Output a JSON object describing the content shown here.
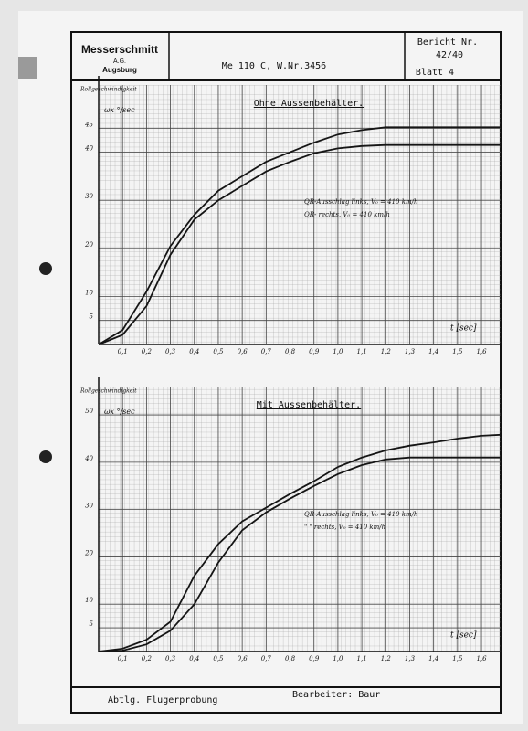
{
  "header": {
    "company": "Messerschmitt",
    "company_sub": "A.G.",
    "city": "Augsburg",
    "aircraft": "Me 110 C, W.Nr.3456",
    "report_label": "Bericht Nr.",
    "report_number": "42/40",
    "sheet": "Blatt 4"
  },
  "footer": {
    "department": "Abtlg. Flugerprobung",
    "author": "Bearbeiter: Baur"
  },
  "chart_data": [
    {
      "type": "line",
      "title": "Ohne Aussenbehälter.",
      "y_label": "Rollgeschwindigkeit",
      "y_unit": "ωx °/sec",
      "x_label": "t [sec]",
      "x": [
        0,
        0.1,
        0.2,
        0.3,
        0.4,
        0.5,
        0.6,
        0.7,
        0.8,
        0.9,
        1.0,
        1.1,
        1.2,
        1.3,
        1.4,
        1.5,
        1.6,
        1.68
      ],
      "xlim": [
        0,
        1.68
      ],
      "xticks": [
        {
          "value": 0.1,
          "label": "0,1"
        },
        {
          "value": 0.2,
          "label": "0,2"
        },
        {
          "value": 0.3,
          "label": "0,3"
        },
        {
          "value": 0.4,
          "label": "0,4"
        },
        {
          "value": 0.5,
          "label": "0,5"
        },
        {
          "value": 0.6,
          "label": "0,6"
        },
        {
          "value": 0.7,
          "label": "0,7"
        },
        {
          "value": 0.8,
          "label": "0,8"
        },
        {
          "value": 0.9,
          "label": "0,9"
        },
        {
          "value": 1.0,
          "label": "1,0"
        },
        {
          "value": 1.1,
          "label": "1,1"
        },
        {
          "value": 1.2,
          "label": "1,2"
        },
        {
          "value": 1.3,
          "label": "1,3"
        },
        {
          "value": 1.4,
          "label": "1,4"
        },
        {
          "value": 1.5,
          "label": "1,5"
        },
        {
          "value": 1.6,
          "label": "1,6"
        }
      ],
      "ylim": [
        0,
        54
      ],
      "yticks": [
        5,
        10,
        20,
        30,
        40,
        45
      ],
      "series": [
        {
          "name": "QR-Ausschlag links, V₀ = 410 km/h",
          "color": "#151515",
          "values": [
            0,
            3,
            11,
            20.5,
            27,
            32,
            35,
            38,
            40,
            42,
            43.7,
            44.6,
            45.2,
            45.2,
            45.2,
            45.2,
            45.2,
            45.2
          ]
        },
        {
          "name": "QR- rechts, V₀ = 410 km/h",
          "color": "#151515",
          "values": [
            0,
            2,
            8,
            18.7,
            26,
            30,
            33,
            36,
            38,
            39.8,
            40.8,
            41.3,
            41.5,
            41.5,
            41.5,
            41.5,
            41.5,
            41.5
          ]
        }
      ]
    },
    {
      "type": "line",
      "title": "Mit Aussenbehälter.",
      "y_label": "Rollgeschwindigkeit",
      "y_unit": "ωx °/sec",
      "x_label": "t [sec]",
      "x": [
        0,
        0.1,
        0.2,
        0.3,
        0.4,
        0.5,
        0.6,
        0.7,
        0.8,
        0.9,
        1.0,
        1.1,
        1.2,
        1.3,
        1.4,
        1.5,
        1.6,
        1.68
      ],
      "xlim": [
        0,
        1.68
      ],
      "xticks": [
        {
          "value": 0.1,
          "label": "0,1"
        },
        {
          "value": 0.2,
          "label": "0,2"
        },
        {
          "value": 0.3,
          "label": "0,3"
        },
        {
          "value": 0.4,
          "label": "0,4"
        },
        {
          "value": 0.5,
          "label": "0,5"
        },
        {
          "value": 0.6,
          "label": "0,6"
        },
        {
          "value": 0.7,
          "label": "0,7"
        },
        {
          "value": 0.8,
          "label": "0,8"
        },
        {
          "value": 0.9,
          "label": "0,9"
        },
        {
          "value": 1.0,
          "label": "1,0"
        },
        {
          "value": 1.1,
          "label": "1,1"
        },
        {
          "value": 1.2,
          "label": "1,2"
        },
        {
          "value": 1.3,
          "label": "1,3"
        },
        {
          "value": 1.4,
          "label": "1,4"
        },
        {
          "value": 1.5,
          "label": "1,5"
        },
        {
          "value": 1.6,
          "label": "1,6"
        }
      ],
      "ylim": [
        0,
        56
      ],
      "yticks": [
        5,
        10,
        20,
        30,
        40,
        50
      ],
      "series": [
        {
          "name": "QR-Ausschlag links, V₀ = 410 km/h",
          "color": "#151515",
          "values": [
            0,
            0.6,
            2.5,
            6.3,
            16,
            22.7,
            27.5,
            30.4,
            33.3,
            36,
            39,
            41,
            42.5,
            43.5,
            44.2,
            45,
            45.6,
            45.8
          ]
        },
        {
          "name": "\" \" rechts, V₀ = 410 km/h",
          "color": "#151515",
          "values": [
            0,
            0.2,
            1.5,
            4.4,
            10,
            18.8,
            25.6,
            29.4,
            32.3,
            35,
            37.5,
            39.4,
            40.6,
            41,
            41,
            41,
            41,
            41
          ]
        }
      ]
    }
  ]
}
